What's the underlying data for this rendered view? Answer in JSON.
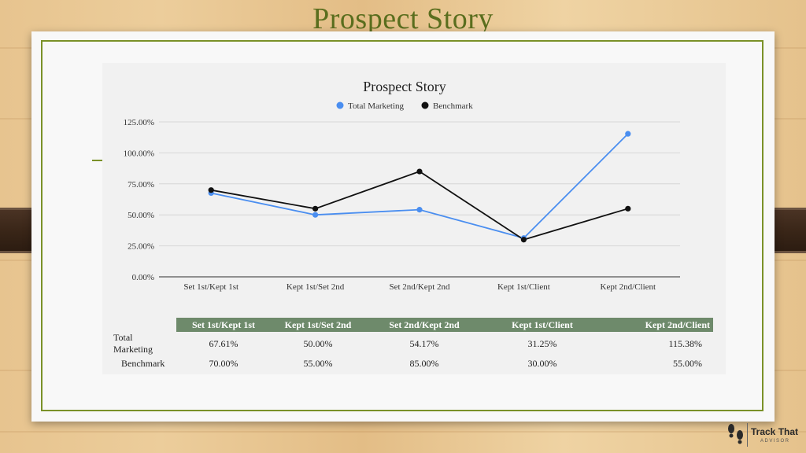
{
  "slide": {
    "title": "Prospect Story"
  },
  "chart_data": {
    "type": "line",
    "title": "Prospect Story",
    "categories": [
      "Set 1st/Kept 1st",
      "Kept 1st/Set 2nd",
      "Set 2nd/Kept 2nd",
      "Kept 1st/Client",
      "Kept 2nd/Client"
    ],
    "series": [
      {
        "name": "Total Marketing",
        "values": [
          67.61,
          50.0,
          54.17,
          31.25,
          115.38
        ],
        "color": "#4a8ef0"
      },
      {
        "name": "Benchmark",
        "values": [
          70.0,
          55.0,
          85.0,
          30.0,
          55.0
        ],
        "color": "#111111"
      }
    ],
    "ylim": [
      0,
      125
    ],
    "yticks": [
      "0.00%",
      "25.00%",
      "50.00%",
      "75.00%",
      "100.00%",
      "125.00%"
    ],
    "ytick_values": [
      0,
      25,
      50,
      75,
      100,
      125
    ],
    "grid": true,
    "legend": "top-center"
  },
  "data_table": {
    "headers": [
      "",
      "Set 1st/Kept 1st",
      "Kept 1st/Set 2nd",
      "Set 2nd/Kept 2nd",
      "Kept 1st/Client",
      "Kept 2nd/Client"
    ],
    "rows": [
      [
        "Total Marketing",
        "67.61%",
        "50.00%",
        "54.17%",
        "31.25%",
        "115.38%"
      ],
      [
        "Benchmark",
        "70.00%",
        "55.00%",
        "85.00%",
        "30.00%",
        "55.00%"
      ]
    ],
    "header_color": "#6e8a6b"
  },
  "logo": {
    "name": "Track That",
    "tagline": "ADVISOR"
  },
  "colors": {
    "title": "#5a6e1e",
    "border": "#7a9128"
  }
}
